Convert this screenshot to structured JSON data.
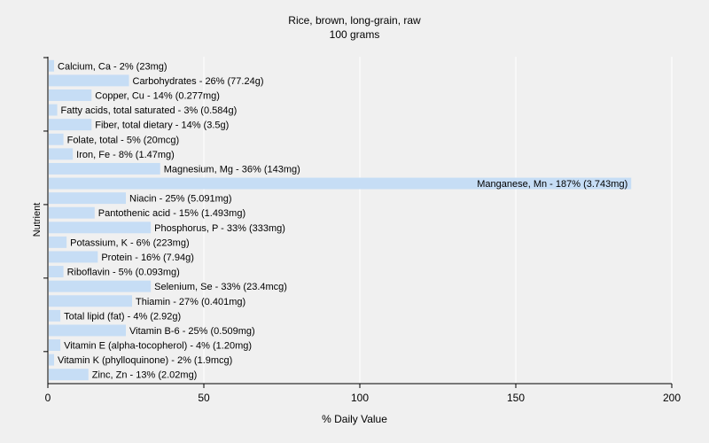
{
  "chart_data": {
    "type": "bar",
    "orientation": "horizontal",
    "title": "Rice, brown, long-grain, raw",
    "subtitle": "100 grams",
    "xlabel": "% Daily Value",
    "ylabel": "Nutrient",
    "xlim": [
      0,
      200
    ],
    "xticks": [
      0,
      50,
      100,
      150,
      200
    ],
    "grid": "vertical",
    "bar_color": "#c6ddf5",
    "bars": [
      {
        "label": "Calcium, Ca - 2% (23mg)",
        "value": 2
      },
      {
        "label": "Carbohydrates - 26% (77.24g)",
        "value": 26
      },
      {
        "label": "Copper, Cu - 14% (0.277mg)",
        "value": 14
      },
      {
        "label": "Fatty acids, total saturated - 3% (0.584g)",
        "value": 3
      },
      {
        "label": "Fiber, total dietary - 14% (3.5g)",
        "value": 14
      },
      {
        "label": "Folate, total - 5% (20mcg)",
        "value": 5
      },
      {
        "label": "Iron, Fe - 8% (1.47mg)",
        "value": 8
      },
      {
        "label": "Magnesium, Mg - 36% (143mg)",
        "value": 36
      },
      {
        "label": "Manganese, Mn - 187% (3.743mg)",
        "value": 187
      },
      {
        "label": "Niacin - 25% (5.091mg)",
        "value": 25
      },
      {
        "label": "Pantothenic acid - 15% (1.493mg)",
        "value": 15
      },
      {
        "label": "Phosphorus, P - 33% (333mg)",
        "value": 33
      },
      {
        "label": "Potassium, K - 6% (223mg)",
        "value": 6
      },
      {
        "label": "Protein - 16% (7.94g)",
        "value": 16
      },
      {
        "label": "Riboflavin - 5% (0.093mg)",
        "value": 5
      },
      {
        "label": "Selenium, Se - 33% (23.4mcg)",
        "value": 33
      },
      {
        "label": "Thiamin - 27% (0.401mg)",
        "value": 27
      },
      {
        "label": "Total lipid (fat) - 4% (2.92g)",
        "value": 4
      },
      {
        "label": "Vitamin B-6 - 25% (0.509mg)",
        "value": 25
      },
      {
        "label": "Vitamin E (alpha-tocopherol) - 4% (1.20mg)",
        "value": 4
      },
      {
        "label": "Vitamin K (phylloquinone) - 2% (1.9mcg)",
        "value": 2
      },
      {
        "label": "Zinc, Zn - 13% (2.02mg)",
        "value": 13
      }
    ]
  }
}
